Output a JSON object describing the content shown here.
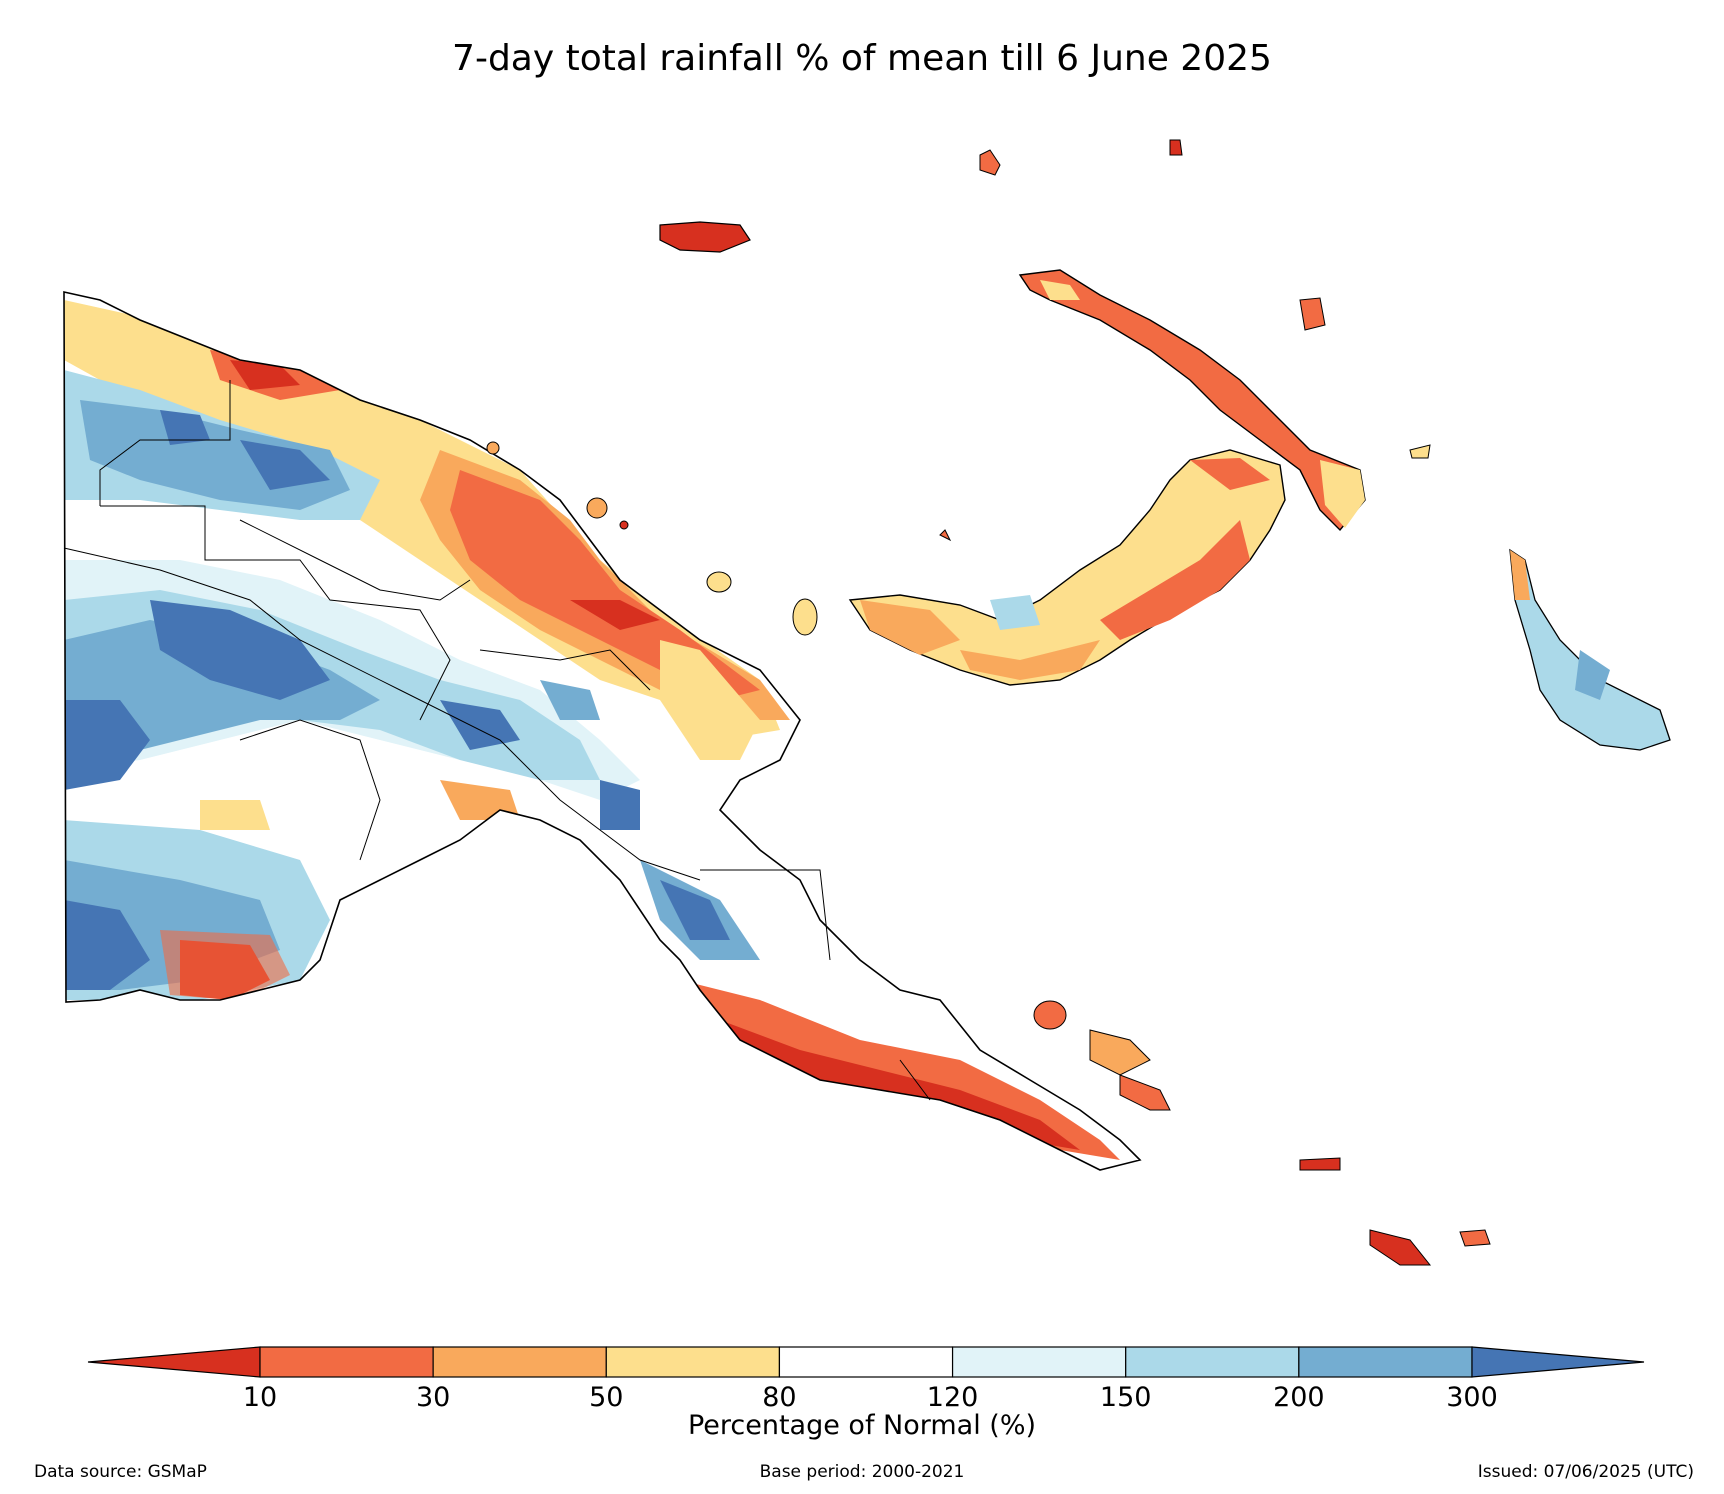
{
  "title": "7-day total rainfall % of mean till 6 June 2025",
  "colorbar": {
    "label": "Percentage of Normal (%)",
    "ticks": [
      "10",
      "30",
      "50",
      "80",
      "120",
      "150",
      "200",
      "300"
    ],
    "classes": [
      {
        "range": "<10",
        "color": "#d7301f"
      },
      {
        "range": "10-30",
        "color": "#f26b43"
      },
      {
        "range": "30-50",
        "color": "#f9a95c"
      },
      {
        "range": "50-80",
        "color": "#fddf8d"
      },
      {
        "range": "80-120",
        "color": "#ffffff"
      },
      {
        "range": "120-150",
        "color": "#e1f3f8"
      },
      {
        "range": "150-200",
        "color": "#abd9e9"
      },
      {
        "range": "200-300",
        "color": "#74add1"
      },
      {
        "range": ">300",
        "color": "#4575b4"
      }
    ]
  },
  "footer": {
    "source": "Data source: GSMaP",
    "base_period": "Base period: 2000-2021",
    "issued": "Issued: 07/06/2025 (UTC)"
  }
}
